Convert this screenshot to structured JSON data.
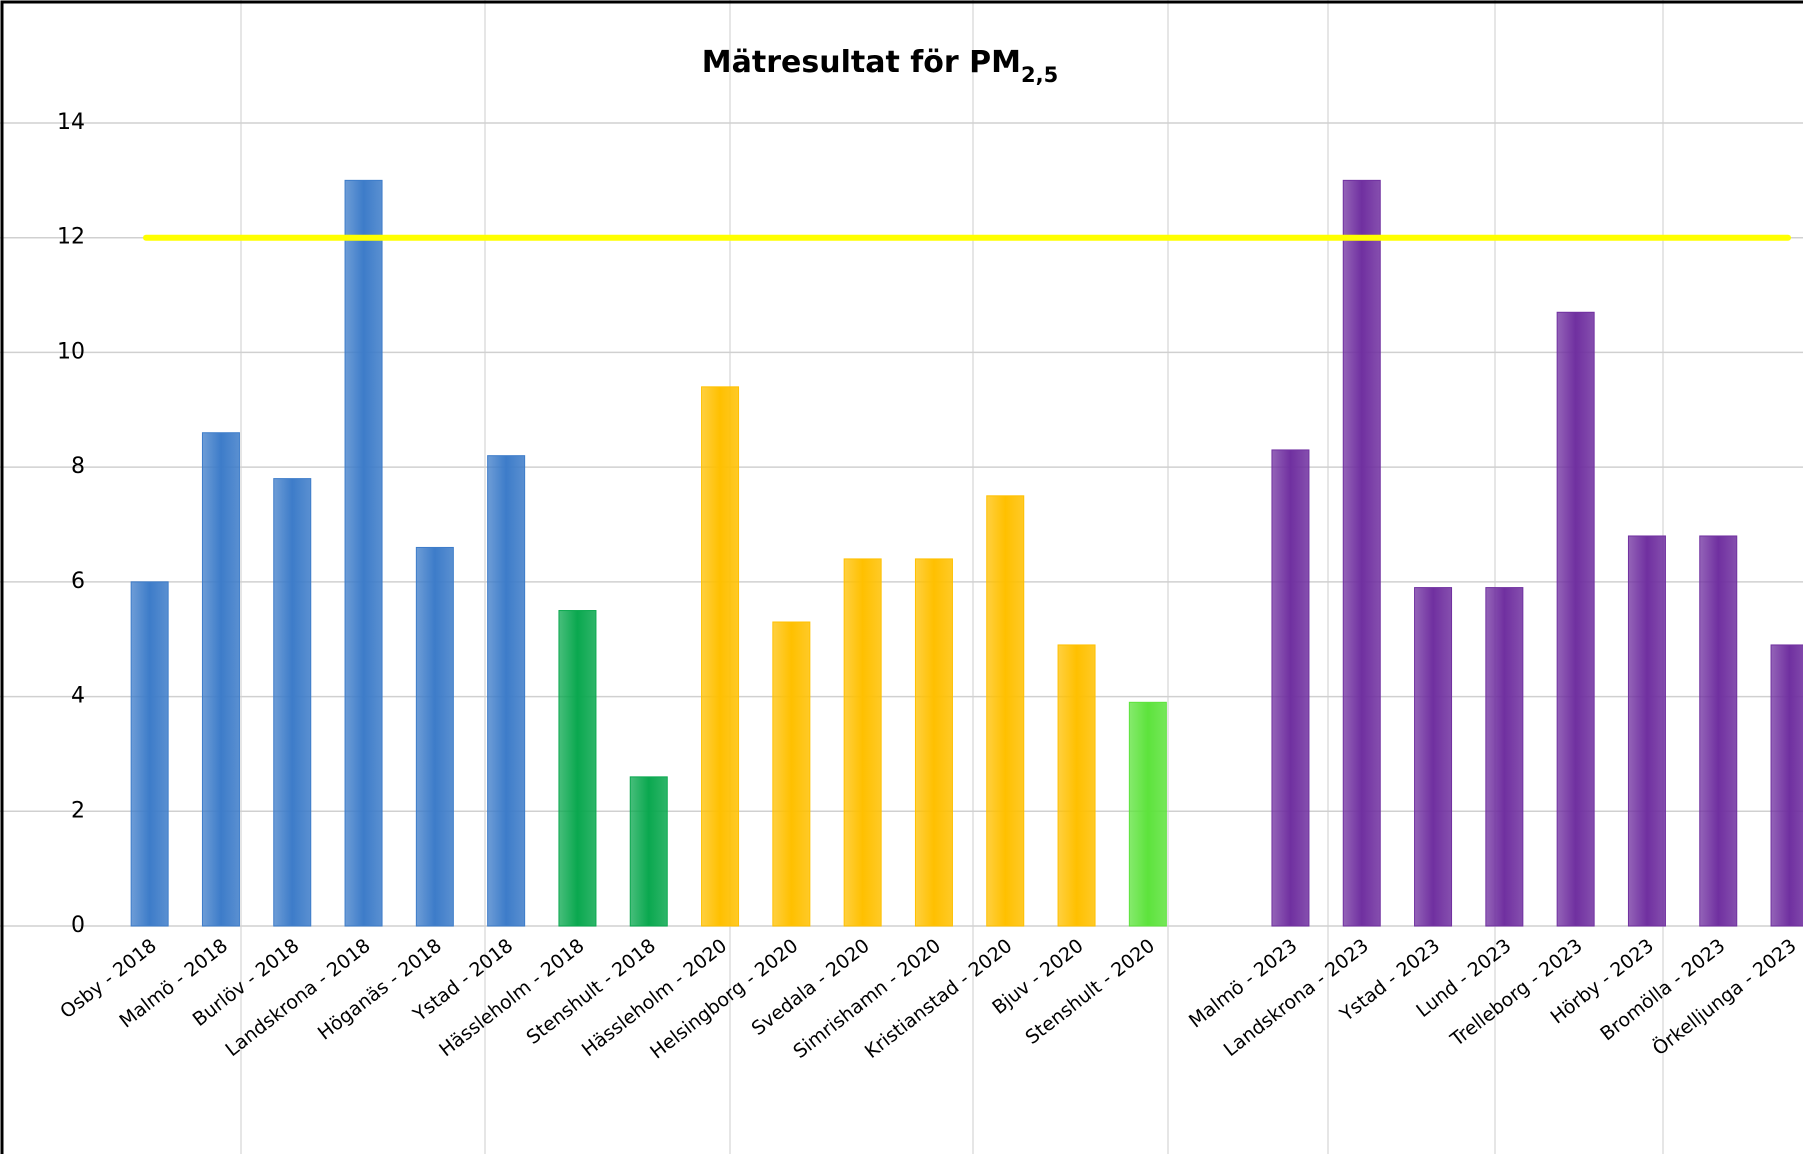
{
  "chart_data": {
    "type": "bar",
    "title": "Mätresultat för PM",
    "title_subscript": "2,5",
    "categories": [
      "Osby - 2018",
      "Malmö - 2018",
      "Burlöv - 2018",
      "Landskrona - 2018",
      "Höganäs - 2018",
      "Ystad - 2018",
      "Hässleholm - 2018",
      "Stenshult - 2018",
      "Hässleholm - 2020",
      "Helsingborg - 2020",
      "Svedala - 2020",
      "Simrishamn - 2020",
      "Kristianstad - 2020",
      "Bjuv - 2020",
      "Stenshult - 2020",
      null,
      "Malmö - 2023",
      "Landskrona - 2023",
      "Ystad - 2023",
      "Lund - 2023",
      "Trelleborg - 2023",
      "Hörby - 2023",
      "Bromölla - 2023",
      "Örkelljunga - 2023"
    ],
    "values": [
      6.0,
      8.6,
      7.8,
      13.0,
      6.6,
      8.2,
      5.5,
      2.6,
      9.4,
      5.3,
      6.4,
      6.4,
      7.5,
      4.9,
      3.9,
      null,
      8.3,
      13.0,
      5.9,
      5.9,
      10.7,
      6.8,
      6.8,
      4.9
    ],
    "colors": [
      "#3d7cc9",
      "#3d7cc9",
      "#3d7cc9",
      "#3d7cc9",
      "#3d7cc9",
      "#3d7cc9",
      "#0aa84f",
      "#0aa84f",
      "#ffc000",
      "#ffc000",
      "#ffc000",
      "#ffc000",
      "#ffc000",
      "#ffc000",
      "#5de33c",
      null,
      "#7030a0",
      "#7030a0",
      "#7030a0",
      "#7030a0",
      "#7030a0",
      "#7030a0",
      "#7030a0",
      "#7030a0"
    ],
    "reference_line": {
      "value": 12,
      "color": "#ffff00"
    },
    "ylim": [
      0,
      14
    ],
    "yticks": [
      0,
      2,
      4,
      6,
      8,
      10,
      12,
      14
    ],
    "grid": true
  }
}
